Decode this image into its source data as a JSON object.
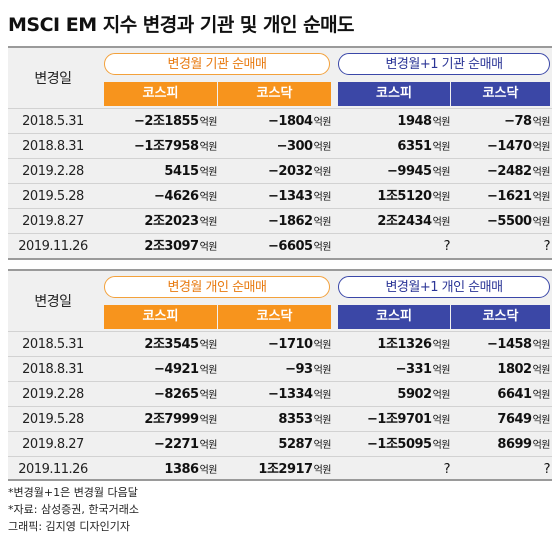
{
  "title": "MSCI EM 지수 변경과 기관 및 개인 순매도",
  "date_header": "변경일",
  "unit": "억원",
  "tables": [
    {
      "group1": "변경월 기관 순매매",
      "group2": "변경월+1 기관 순매매",
      "cols": [
        "코스피",
        "코스닥",
        "코스피",
        "코스닥"
      ],
      "rows": [
        {
          "date": "2018.5.31",
          "v": [
            "-2조1855",
            "-1804",
            "1948",
            "-78"
          ]
        },
        {
          "date": "2018.8.31",
          "v": [
            "-1조7958",
            "-300",
            "6351",
            "-1470"
          ]
        },
        {
          "date": "2019.2.28",
          "v": [
            "5415",
            "-2032",
            "-9945",
            "-2482"
          ]
        },
        {
          "date": "2019.5.28",
          "v": [
            "-4626",
            "-1343",
            "1조5120",
            "-1621"
          ]
        },
        {
          "date": "2019.8.27",
          "v": [
            "2조2023",
            "-1862",
            "2조2434",
            "-5500"
          ]
        },
        {
          "date": "2019.11.26",
          "v": [
            "2조3097",
            "-6605",
            "?",
            "?"
          ]
        }
      ]
    },
    {
      "group1": "변경월 개인 순매매",
      "group2": "변경월+1 개인 순매매",
      "cols": [
        "코스피",
        "코스닥",
        "코스피",
        "코스닥"
      ],
      "rows": [
        {
          "date": "2018.5.31",
          "v": [
            "2조3545",
            "-1710",
            "1조1326",
            "-1458"
          ]
        },
        {
          "date": "2018.8.31",
          "v": [
            "-4921",
            "-93",
            "-331",
            "1802"
          ]
        },
        {
          "date": "2019.2.28",
          "v": [
            "-8265",
            "-1334",
            "5902",
            "6641"
          ]
        },
        {
          "date": "2019.5.28",
          "v": [
            "2조7999",
            "8353",
            "-1조9701",
            "7649"
          ]
        },
        {
          "date": "2019.8.27",
          "v": [
            "-2271",
            "5287",
            "-1조5095",
            "8699"
          ]
        },
        {
          "date": "2019.11.26",
          "v": [
            "1386",
            "1조2917",
            "?",
            "?"
          ]
        }
      ]
    }
  ],
  "notes": [
    "*변경월+1은 변경월 다음달",
    "*자료: 삼성증권, 한국거래소",
    "그래픽: 김지영 디자인기자"
  ]
}
